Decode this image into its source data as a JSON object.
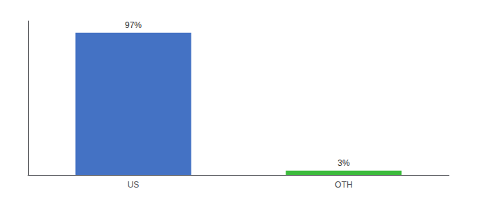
{
  "chart_data": {
    "type": "bar",
    "categories": [
      "US",
      "OTH"
    ],
    "values": [
      97,
      3
    ],
    "value_labels": [
      "97%",
      "3%"
    ],
    "colors": [
      "#4472c4",
      "#3dbb3d"
    ],
    "ylim": [
      0,
      105
    ],
    "grid": false,
    "data_labels": true,
    "tick_labels": "x"
  }
}
